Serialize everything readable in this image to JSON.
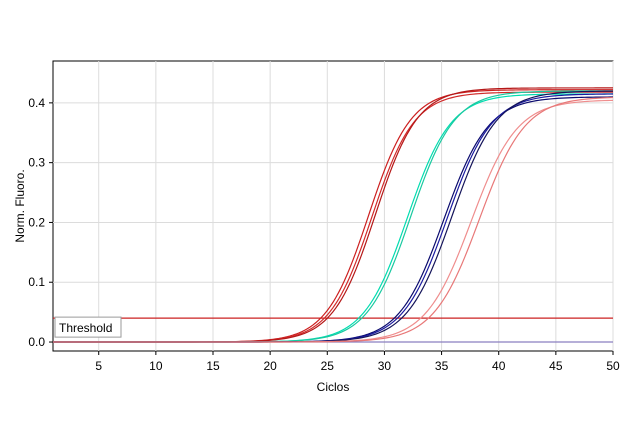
{
  "chart_data": {
    "type": "line",
    "title": "",
    "xlabel": "Ciclos",
    "ylabel": "Norm. Fluoro.",
    "xlim": [
      1,
      50
    ],
    "ylim": [
      -0.015,
      0.47
    ],
    "xticks": [
      5,
      10,
      15,
      20,
      25,
      30,
      35,
      40,
      45,
      50
    ],
    "yticks": [
      0.0,
      0.1,
      0.2,
      0.3,
      0.4
    ],
    "ytick_labels": [
      "0.0",
      "0.1",
      "0.2",
      "0.3",
      "0.4"
    ],
    "grid": true,
    "legend": "none",
    "threshold": {
      "label": "Threshold",
      "value": 0.04,
      "color": "#cc2222"
    },
    "baseline": {
      "value": 0.0,
      "color": "#8a7fc0"
    },
    "series": [
      {
        "color": "#cc1f1f",
        "plateau": 0.422,
        "midpoint": 28.6,
        "slope": 1.85
      },
      {
        "color": "#d12a2a",
        "plateau": 0.418,
        "midpoint": 28.9,
        "slope": 1.85
      },
      {
        "color": "#b51818",
        "plateau": 0.425,
        "midpoint": 29.2,
        "slope": 1.85
      },
      {
        "color": "#00dcb0",
        "plateau": 0.415,
        "midpoint": 32.0,
        "slope": 1.9
      },
      {
        "color": "#19c9a0",
        "plateau": 0.42,
        "midpoint": 32.3,
        "slope": 1.9
      },
      {
        "color": "#0a0a6e",
        "plateau": 0.41,
        "midpoint": 35.2,
        "slope": 1.95
      },
      {
        "color": "#1a1aa0",
        "plateau": 0.415,
        "midpoint": 35.5,
        "slope": 1.95
      },
      {
        "color": "#14145a",
        "plateau": 0.42,
        "midpoint": 35.9,
        "slope": 1.95
      },
      {
        "color": "#ef8d8d",
        "plateau": 0.405,
        "midpoint": 37.6,
        "slope": 2.0
      },
      {
        "color": "#e87878",
        "plateau": 0.41,
        "midpoint": 38.3,
        "slope": 2.0
      }
    ]
  }
}
